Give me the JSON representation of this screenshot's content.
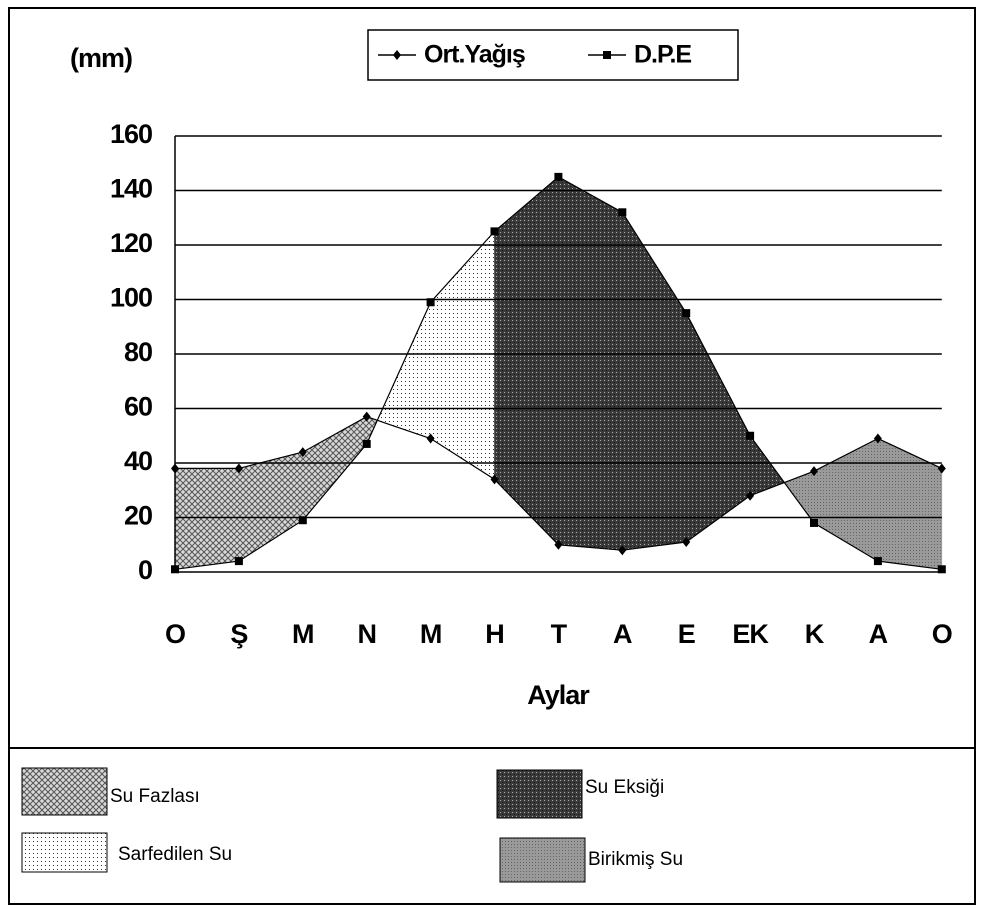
{
  "chart_data": {
    "type": "line",
    "y_label": "(mm)",
    "x_label": "Aylar",
    "categories": [
      "O",
      "Ş",
      "M",
      "N",
      "M",
      "H",
      "T",
      "A",
      "E",
      "EK",
      "K",
      "A",
      "O"
    ],
    "series": [
      {
        "name": "Ort.Yağış",
        "color": "#000000",
        "marker": "diamond",
        "values": [
          38,
          38,
          44,
          57,
          49,
          34,
          10,
          8,
          11,
          28,
          37,
          49,
          38
        ]
      },
      {
        "name": "D.P.E",
        "color": "#000000",
        "marker": "square",
        "values": [
          1,
          4,
          19,
          47,
          99,
          125,
          145,
          132,
          95,
          50,
          18,
          4,
          1
        ]
      }
    ],
    "ylim": [
      0,
      160
    ],
    "yticks": [
      0,
      20,
      40,
      60,
      80,
      100,
      120,
      140,
      160
    ],
    "grid": true,
    "areas": [
      "Su Fazlası",
      "Sarfedilen Su",
      "Su Eksiği",
      "Birikmiş Su"
    ]
  }
}
